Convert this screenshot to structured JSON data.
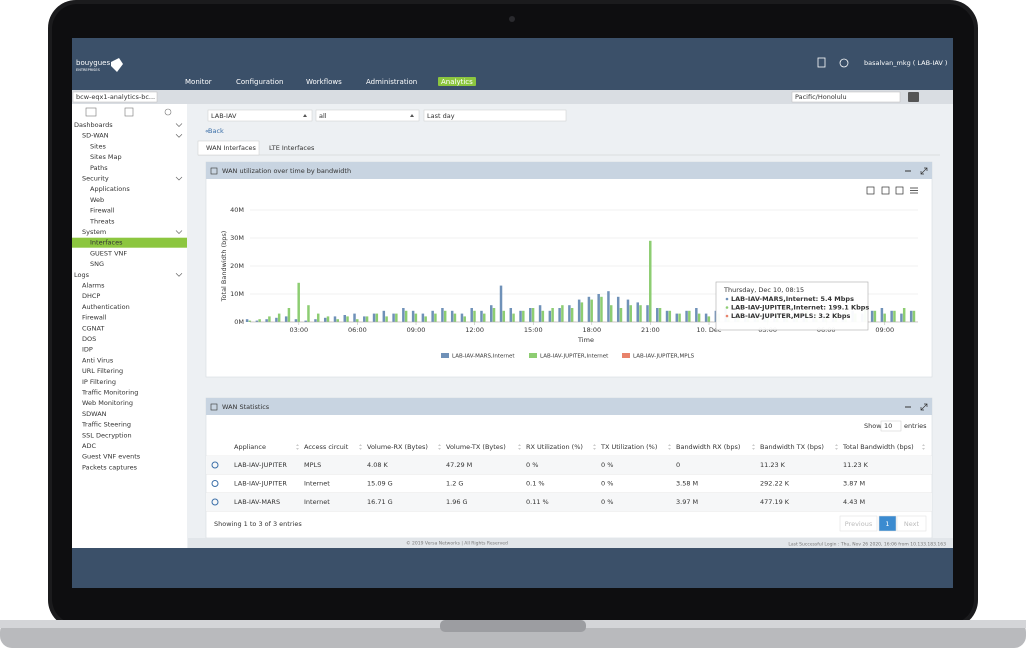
{
  "header": {
    "logo": "bouygues",
    "logo_sub": "ENTREPRISES",
    "nav": [
      {
        "label": "Monitor"
      },
      {
        "label": "Configuration"
      },
      {
        "label": "Workflows"
      },
      {
        "label": "Administration"
      },
      {
        "label": "Analytics",
        "active": true
      }
    ],
    "user": "basalvan_mkg ( LAB-IAV )"
  },
  "toolbar": {
    "org_select": "bcw-eqx1-analytics-bc...",
    "timezone": "Pacific/Honolulu"
  },
  "sidebar": [
    {
      "label": "Dashboards",
      "children": [
        {
          "label": "SD-WAN",
          "children": [
            {
              "label": "Sites"
            },
            {
              "label": "Sites Map"
            },
            {
              "label": "Paths"
            }
          ]
        },
        {
          "label": "Security",
          "children": [
            {
              "label": "Applications"
            },
            {
              "label": "Web"
            },
            {
              "label": "Firewall"
            },
            {
              "label": "Threats"
            }
          ]
        },
        {
          "label": "System",
          "children": [
            {
              "label": "Interfaces",
              "active": true
            },
            {
              "label": "GUEST VNF"
            },
            {
              "label": "SNG"
            }
          ]
        }
      ]
    },
    {
      "label": "Logs",
      "children": [
        {
          "label": "Alarms"
        },
        {
          "label": "DHCP"
        },
        {
          "label": "Authentication"
        },
        {
          "label": "Firewall"
        },
        {
          "label": "CGNAT"
        },
        {
          "label": "DOS"
        },
        {
          "label": "IDP"
        },
        {
          "label": "Anti Virus"
        },
        {
          "label": "URL Filtering"
        },
        {
          "label": "IP Filtering"
        },
        {
          "label": "Traffic Monitoring"
        },
        {
          "label": "Web Monitoring"
        },
        {
          "label": "SDWAN"
        },
        {
          "label": "Traffic Steering"
        },
        {
          "label": "SSL Decryption"
        },
        {
          "label": "ADC"
        },
        {
          "label": "Guest VNF events"
        },
        {
          "label": "Packets captures"
        }
      ]
    }
  ],
  "filters": [
    "LAB-IAV",
    "all",
    "Last day"
  ],
  "back": "Back",
  "tabs": [
    {
      "label": "WAN Interfaces",
      "active": true
    },
    {
      "label": "LTE Interfaces"
    }
  ],
  "chart_data": {
    "type": "bar",
    "title": "WAN utilization over time by bandwidth",
    "y_label": "Total Bandwidth (bps)",
    "x_label": "Time",
    "x": [
      0.5,
      1,
      1.5,
      2,
      2.5,
      3,
      3.5,
      4,
      4.5,
      5,
      5.5,
      6,
      6.5,
      7,
      7.5,
      8,
      8.5,
      9,
      9.5,
      10,
      10.5,
      11,
      11.5,
      12,
      12.5,
      13,
      13.5,
      14,
      14.5,
      15,
      15.5,
      16,
      16.5,
      17,
      17.5,
      18,
      18.5,
      19,
      19.5,
      20,
      20.5,
      21,
      21.5,
      22,
      22.5,
      23,
      23.5,
      24,
      24.5,
      25,
      25.5,
      26,
      26.5,
      27,
      27.5,
      28,
      28.5,
      29,
      29.5,
      30,
      30.5,
      31,
      31.5,
      32,
      32.5,
      33,
      33.5,
      34,
      34.5
    ],
    "series": [
      {
        "name": "LAB-IAV-MARS,Internet",
        "color": "#6f91b8",
        "values": [
          1,
          0.5,
          1,
          1.5,
          2,
          1,
          0.5,
          1,
          1.5,
          2,
          2.5,
          3,
          2,
          3,
          4,
          3,
          5,
          4,
          3,
          4,
          5,
          4,
          3,
          5,
          4,
          6,
          13,
          5,
          4,
          5,
          6,
          4,
          5,
          6,
          8,
          9,
          10,
          11,
          9,
          8,
          7,
          6,
          5,
          4,
          3,
          4,
          5,
          3,
          4,
          5,
          4,
          3,
          4,
          3,
          2,
          3,
          4,
          3,
          2,
          3,
          4,
          3,
          4,
          3,
          4,
          5,
          4,
          3,
          4
        ]
      },
      {
        "name": "LAB-IAV-JUPITER,Internet",
        "color": "#8dcd72",
        "values": [
          0.5,
          1,
          2,
          3,
          5,
          14,
          6,
          3,
          2,
          1,
          2,
          1,
          2,
          3,
          2,
          3,
          4,
          3,
          2,
          3,
          4,
          3,
          2,
          4,
          3,
          5,
          4,
          3,
          4,
          5,
          4,
          5,
          6,
          5,
          7,
          8,
          9,
          6,
          5,
          6,
          6,
          29,
          5,
          4,
          3,
          4,
          3,
          2,
          3,
          2,
          3,
          2,
          3,
          2,
          3,
          2,
          3,
          4,
          3,
          2,
          3,
          4,
          3,
          5,
          4,
          3,
          4,
          5,
          4
        ]
      },
      {
        "name": "LAB-IAV-JUPITER,MPLS",
        "color": "#e8826b",
        "values": [
          0.05,
          0.05,
          0.05,
          0.05,
          0.05,
          0.05,
          0.05,
          0.05,
          0.05,
          0.05,
          0.05,
          0.05,
          0.05,
          0.05,
          0.05,
          0.05,
          0.05,
          0.05,
          0.05,
          0.05,
          0.05,
          0.05,
          0.05,
          0.05,
          0.05,
          0.05,
          0.05,
          0.05,
          0.05,
          0.05,
          0.05,
          0.05,
          0.05,
          0.05,
          0.05,
          0.05,
          0.05,
          0.05,
          0.05,
          0.05,
          0.05,
          0.05,
          0.05,
          0.05,
          0.05,
          0.05,
          0.05,
          0.05,
          0.05,
          0.05,
          0.05,
          0.05,
          0.05,
          0.05,
          0.05,
          0.05,
          0.05,
          0.05,
          0.05,
          0.05,
          0.05,
          0.05,
          0.05,
          0.05,
          0.05,
          0.05,
          0.05,
          0.05,
          0.05
        ]
      }
    ],
    "xlim": [
      0.5,
      34.7
    ],
    "xticks": [
      {
        "value": 3,
        "label": "03:00"
      },
      {
        "value": 6,
        "label": "06:00"
      },
      {
        "value": 9,
        "label": "09:00"
      },
      {
        "value": 12,
        "label": "12:00"
      },
      {
        "value": 15,
        "label": "15:00"
      },
      {
        "value": 18,
        "label": "18:00"
      },
      {
        "value": 21,
        "label": "21:00"
      },
      {
        "value": 24,
        "label": "10. Dec"
      },
      {
        "value": 27,
        "label": "03:00"
      },
      {
        "value": 30,
        "label": "06:00"
      },
      {
        "value": 33,
        "label": "09:00"
      }
    ],
    "ylim": [
      0,
      40
    ],
    "yticks": [
      {
        "value": 0,
        "label": "0M"
      },
      {
        "value": 10,
        "label": "10M"
      },
      {
        "value": 20,
        "label": "20M"
      },
      {
        "value": 30,
        "label": "30M"
      },
      {
        "value": 40,
        "label": "40M"
      }
    ],
    "grid": true,
    "tooltip": {
      "title": "Thursday, Dec 10, 08:15",
      "lines": [
        "LAB-IAV-MARS,Internet: 5.4 Mbps",
        "LAB-IAV-JUPITER,Internet: 199.1 Kbps",
        "LAB-IAV-JUPITER,MPLS: 3.2 Kbps"
      ]
    }
  },
  "stats": {
    "title": "WAN Statistics",
    "show": "Show",
    "page_size": 10,
    "entries": "entries",
    "columns": [
      "Appliance",
      "Access circuit",
      "Volume-RX (Bytes)",
      "Volume-TX (Bytes)",
      "RX Utilization (%)",
      "TX Utilization (%)",
      "Bandwidth RX (bps)",
      "Bandwidth TX (bps)",
      "Total Bandwidth (bps)"
    ],
    "rows": [
      [
        "LAB-IAV-JUPITER",
        "MPLS",
        "4.08 K",
        "47.29 M",
        "0 %",
        "0 %",
        "0",
        "11.23 K",
        "11.23 K"
      ],
      [
        "LAB-IAV-JUPITER",
        "Internet",
        "15.09 G",
        "1.2 G",
        "0.1 %",
        "0 %",
        "3.58 M",
        "292.22 K",
        "3.87 M"
      ],
      [
        "LAB-IAV-MARS",
        "Internet",
        "16.71 G",
        "1.96 G",
        "0.11 %",
        "0 %",
        "3.97 M",
        "477.19 K",
        "4.43 M"
      ]
    ],
    "info": "Showing 1 to 3 of 3 entries",
    "pagination": [
      "Previous",
      "1",
      "Next"
    ]
  },
  "footer": {
    "copyright": "© 2019 Versa Networks | All Rights Reserved",
    "last_login": "Last Successful Login : Thu, Nov 26 2020, 16:06 from 10.133.183.163"
  }
}
